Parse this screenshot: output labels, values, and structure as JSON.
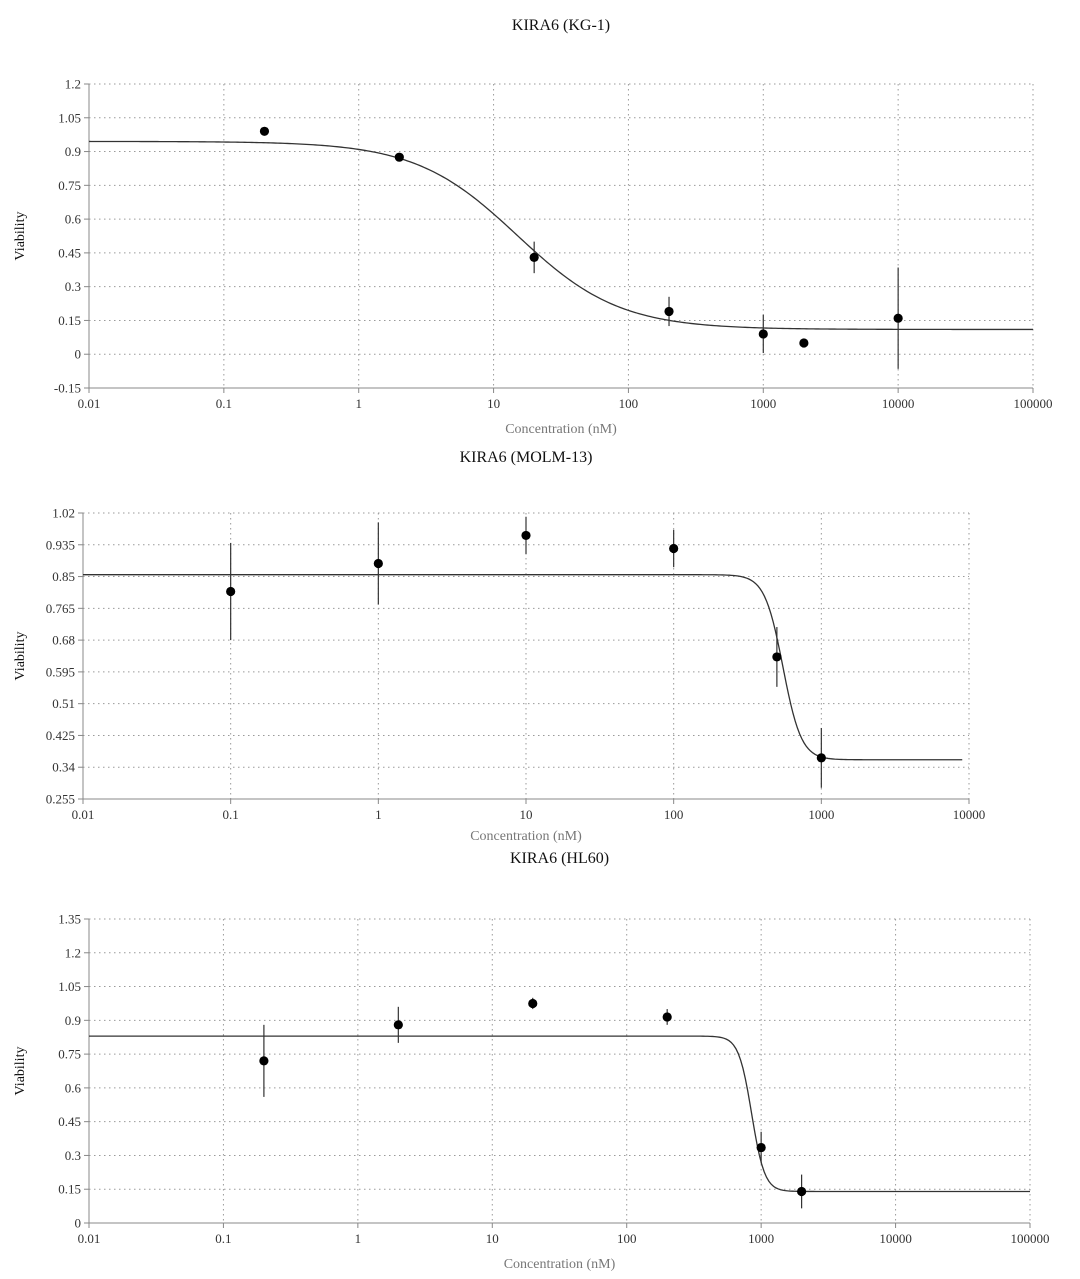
{
  "chart_data": [
    {
      "type": "scatter",
      "title": "KIRA6 (KG-1)",
      "xlabel": "Concentration (nM)",
      "ylabel": "Viability",
      "xscale": "log",
      "xlim": [
        0.01,
        100000
      ],
      "x_ticks": [
        "0.01",
        "0.1",
        "1",
        "10",
        "100",
        "1000",
        "10000",
        "100000"
      ],
      "ylim": [
        -0.15,
        1.2
      ],
      "y_ticks": [
        "-0.15",
        "0",
        "0.15",
        "0.3",
        "0.45",
        "0.6",
        "0.75",
        "0.9",
        "1.05",
        "1.2"
      ],
      "grid": true,
      "points": [
        {
          "x": 0.2,
          "y": 0.99,
          "err": 0
        },
        {
          "x": 2,
          "y": 0.875,
          "err": 0.01
        },
        {
          "x": 20,
          "y": 0.43,
          "err": 0.07
        },
        {
          "x": 200,
          "y": 0.19,
          "err": 0.065
        },
        {
          "x": 1000,
          "y": 0.09,
          "err": 0.085
        },
        {
          "x": 2000,
          "y": 0.05,
          "err": 0
        },
        {
          "x": 10000,
          "y": 0.16,
          "err": 0.225
        }
      ],
      "fit": {
        "top": 0.945,
        "bottom": 0.11,
        "ec50": 15,
        "hill": 1.15,
        "x_range": [
          0.01,
          100000
        ]
      }
    },
    {
      "type": "scatter",
      "title": "KIRA6 (MOLM-13)",
      "xlabel": "Concentration (nM)",
      "ylabel": "Viability",
      "xscale": "log",
      "xlim": [
        0.01,
        10000
      ],
      "x_ticks": [
        "0.01",
        "0.1",
        "1",
        "10",
        "100",
        "1000",
        "10000"
      ],
      "ylim": [
        0.255,
        1.02
      ],
      "y_ticks": [
        "0.255",
        "0.34",
        "0.425",
        "0.51",
        "0.595",
        "0.68",
        "0.765",
        "0.85",
        "0.935",
        "1.02"
      ],
      "grid": true,
      "points": [
        {
          "x": 0.1,
          "y": 0.81,
          "err": 0.13
        },
        {
          "x": 1,
          "y": 0.885,
          "err": 0.11
        },
        {
          "x": 10,
          "y": 0.96,
          "err": 0.05
        },
        {
          "x": 100,
          "y": 0.925,
          "err": 0.05
        },
        {
          "x": 500,
          "y": 0.635,
          "err": 0.08
        },
        {
          "x": 1000,
          "y": 0.365,
          "err": 0.08
        }
      ],
      "fit": {
        "top": 0.855,
        "bottom": 0.36,
        "ec50": 550,
        "hill": 7,
        "x_range": [
          0.01,
          9000
        ]
      }
    },
    {
      "type": "scatter",
      "title": "KIRA6 (HL60)",
      "xlabel": "Concentration (nM)",
      "ylabel": "Viability",
      "xscale": "log",
      "xlim": [
        0.01,
        100000
      ],
      "x_ticks": [
        "0.01",
        "0.1",
        "1",
        "10",
        "100",
        "1000",
        "10000",
        "100000"
      ],
      "ylim": [
        0,
        1.35
      ],
      "y_ticks": [
        "0",
        "0.15",
        "0.3",
        "0.45",
        "0.6",
        "0.75",
        "0.9",
        "1.05",
        "1.2",
        "1.35"
      ],
      "grid": true,
      "points": [
        {
          "x": 0.2,
          "y": 0.72,
          "err": 0.16
        },
        {
          "x": 2,
          "y": 0.88,
          "err": 0.08
        },
        {
          "x": 20,
          "y": 0.975,
          "err": 0.025
        },
        {
          "x": 200,
          "y": 0.915,
          "err": 0.035
        },
        {
          "x": 1000,
          "y": 0.335,
          "err": 0.07
        },
        {
          "x": 2000,
          "y": 0.14,
          "err": 0.075
        }
      ],
      "fit": {
        "top": 0.83,
        "bottom": 0.14,
        "ec50": 850,
        "hill": 9,
        "x_range": [
          0.01,
          100000
        ]
      }
    }
  ]
}
